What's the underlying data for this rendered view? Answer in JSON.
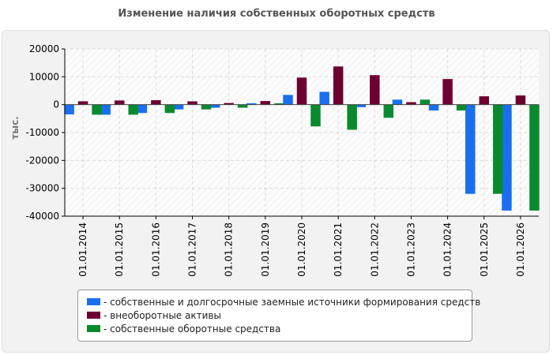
{
  "title": "Изменение наличия собственных оборотных средств",
  "chart_data": {
    "type": "bar",
    "ylabel": "тыс.",
    "xlabel": "",
    "ylim": [
      -40000,
      20000
    ],
    "yticks": [
      20000,
      10000,
      0,
      -10000,
      -20000,
      -30000,
      -40000
    ],
    "grid": true,
    "legend_position": "bottom",
    "categories": [
      "01.01.2014",
      "01.01.2015",
      "01.01.2016",
      "01.01.2017",
      "01.01.2018",
      "01.01.2019",
      "01.01.2020",
      "01.01.2021",
      "01.01.2022",
      "01.01.2023",
      "01.01.2024",
      "01.01.2025",
      "01.01.2026"
    ],
    "series": [
      {
        "name": "собственные и долгосрочные заемные источники формирования средств",
        "color": "#1a6ff0",
        "values": [
          -3500,
          -3600,
          -3000,
          -1700,
          -1100,
          500,
          3500,
          4600,
          -900,
          1800,
          -2100,
          -32000,
          -38000
        ]
      },
      {
        "name": "внеоборотные активы",
        "color": "#6e0031",
        "values": [
          1200,
          1500,
          1600,
          1200,
          600,
          1300,
          9700,
          13700,
          10600,
          900,
          9200,
          3000,
          3300
        ]
      },
      {
        "name": "собственные оборотные средства",
        "color": "#0a8a2e",
        "values": [
          -3600,
          -3600,
          -3000,
          -1700,
          -1100,
          500,
          -7800,
          -9000,
          -4700,
          1800,
          -2100,
          -32000,
          -38000
        ]
      }
    ]
  }
}
